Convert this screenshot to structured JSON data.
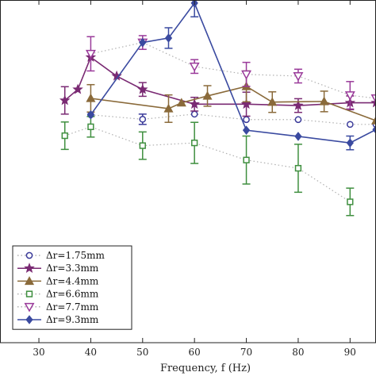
{
  "chart_data": {
    "type": "line",
    "xlabel": "Frequency, f (Hz)",
    "ylabel": "",
    "xlim": [
      22.5,
      95
    ],
    "ylim": [
      0,
      1
    ],
    "x_ticks": [
      30,
      40,
      50,
      60,
      70,
      80,
      90
    ],
    "grid": false,
    "legend_position": "lower-left",
    "series": [
      {
        "name": "Δr=1.75mm",
        "color": "#3b3b9a",
        "line_style": "dotted",
        "marker": "circle",
        "points": [
          {
            "x": 40,
            "y": 0.665,
            "err": 0.0
          },
          {
            "x": 50,
            "y": 0.652,
            "err": 0.015
          },
          {
            "x": 60,
            "y": 0.667,
            "err": 0.0
          },
          {
            "x": 70,
            "y": 0.651,
            "err": 0.0
          },
          {
            "x": 80,
            "y": 0.651,
            "err": 0.0
          },
          {
            "x": 90,
            "y": 0.637,
            "err": 0.0
          },
          {
            "x": 95,
            "y": 0.637,
            "err": 0.0
          }
        ]
      },
      {
        "name": "Δr=3.3mm",
        "color": "#7a2a73",
        "line_style": "solid",
        "marker": "star",
        "points": [
          {
            "x": 35,
            "y": 0.707,
            "err": 0.04
          },
          {
            "x": 37.5,
            "y": 0.739,
            "err": 0.0
          },
          {
            "x": 40,
            "y": 0.833,
            "err": 0.0
          },
          {
            "x": 45,
            "y": 0.778,
            "err": 0.0
          },
          {
            "x": 50,
            "y": 0.739,
            "err": 0.02
          },
          {
            "x": 60,
            "y": 0.696,
            "err": 0.02
          },
          {
            "x": 70,
            "y": 0.696,
            "err": 0.035
          },
          {
            "x": 80,
            "y": 0.692,
            "err": 0.02
          },
          {
            "x": 90,
            "y": 0.7,
            "err": 0.02
          },
          {
            "x": 95,
            "y": 0.7,
            "err": 0.0
          }
        ]
      },
      {
        "name": "Δr=4.4mm",
        "color": "#8a6a3a",
        "line_style": "solid",
        "marker": "triangle-up",
        "points": [
          {
            "x": 40,
            "y": 0.713,
            "err": 0.04
          },
          {
            "x": 55,
            "y": 0.683,
            "err": 0.04
          },
          {
            "x": 57.5,
            "y": 0.7,
            "err": 0.0
          },
          {
            "x": 62.5,
            "y": 0.72,
            "err": 0.03
          },
          {
            "x": 70,
            "y": 0.748,
            "err": 0.045
          },
          {
            "x": 75,
            "y": 0.702,
            "err": 0.03
          },
          {
            "x": 85,
            "y": 0.704,
            "err": 0.03
          },
          {
            "x": 95,
            "y": 0.648,
            "err": 0.0
          }
        ]
      },
      {
        "name": "Δr=6.6mm",
        "color": "#3f8f3f",
        "line_style": "dotted",
        "marker": "square",
        "points": [
          {
            "x": 35,
            "y": 0.604,
            "err": 0.04
          },
          {
            "x": 40,
            "y": 0.63,
            "err": 0.03
          },
          {
            "x": 50,
            "y": 0.575,
            "err": 0.04
          },
          {
            "x": 60,
            "y": 0.583,
            "err": 0.06
          },
          {
            "x": 70,
            "y": 0.533,
            "err": 0.07
          },
          {
            "x": 80,
            "y": 0.509,
            "err": 0.07
          },
          {
            "x": 90,
            "y": 0.411,
            "err": 0.04
          }
        ]
      },
      {
        "name": "Δr=7.7mm",
        "color": "#9a3a9a",
        "line_style": "dotted",
        "marker": "triangle-down",
        "points": [
          {
            "x": 40,
            "y": 0.843,
            "err": 0.05
          },
          {
            "x": 50,
            "y": 0.876,
            "err": 0.02
          },
          {
            "x": 60,
            "y": 0.806,
            "err": 0.02
          },
          {
            "x": 70,
            "y": 0.783,
            "err": 0.035
          },
          {
            "x": 80,
            "y": 0.778,
            "err": 0.02
          },
          {
            "x": 90,
            "y": 0.722,
            "err": 0.04
          },
          {
            "x": 95,
            "y": 0.713,
            "err": 0.0
          }
        ]
      },
      {
        "name": "Δr=9.3mm",
        "color": "#3a4aa0",
        "line_style": "solid",
        "marker": "diamond",
        "points": [
          {
            "x": 40,
            "y": 0.665,
            "err": 0.0
          },
          {
            "x": 50,
            "y": 0.876,
            "err": 0.0
          },
          {
            "x": 55,
            "y": 0.889,
            "err": 0.03
          },
          {
            "x": 60,
            "y": 0.991,
            "err": 0.04
          },
          {
            "x": 70,
            "y": 0.62,
            "err": 0.0
          },
          {
            "x": 80,
            "y": 0.602,
            "err": 0.0
          },
          {
            "x": 90,
            "y": 0.583,
            "err": 0.02
          },
          {
            "x": 95,
            "y": 0.622,
            "err": 0.0
          }
        ]
      }
    ]
  }
}
